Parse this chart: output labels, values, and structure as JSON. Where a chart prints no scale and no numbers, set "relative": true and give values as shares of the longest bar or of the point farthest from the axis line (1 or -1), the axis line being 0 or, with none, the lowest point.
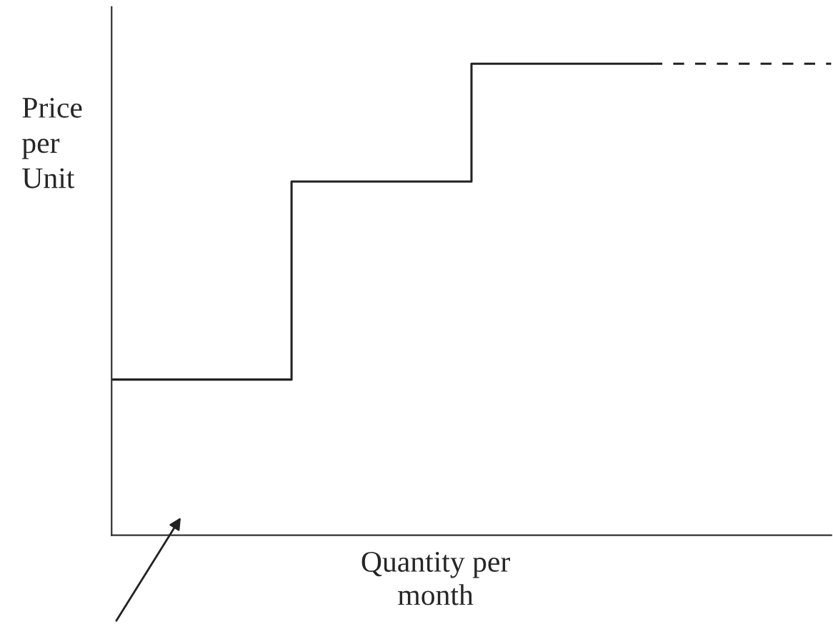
{
  "chart_data": {
    "type": "step",
    "relative": true,
    "ylabel": "Price\nper\nUnit",
    "xlabel": "Quantity per\nmonth",
    "categories": [
      null,
      null,
      null,
      null,
      null
    ],
    "series": [
      {
        "color": "#222222",
        "values": [
          0.33,
          0.75,
          1,
          1,
          null
        ],
        "line_style": "solid"
      },
      {
        "color": "#222222",
        "values": [
          null,
          null,
          null,
          1,
          1
        ],
        "line_style": "dashed"
      }
    ],
    "legend": false
  }
}
